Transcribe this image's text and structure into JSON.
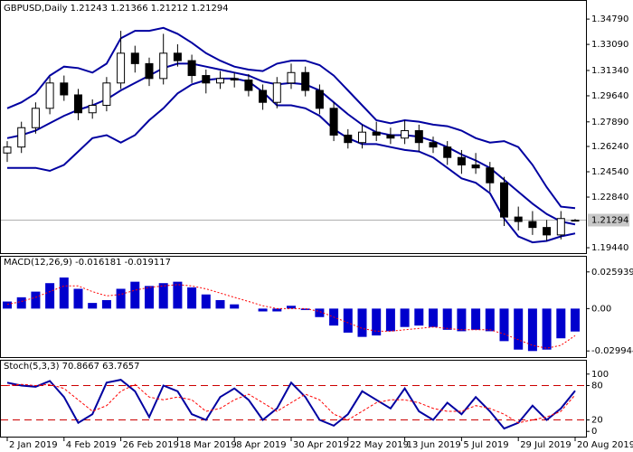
{
  "chart_data": [
    {
      "type": "candlestick",
      "title": "GBPUSD,Daily 1.21243 1.21366 1.21212 1.21294",
      "open": [
        1.258,
        1.262,
        1.275,
        1.288,
        1.305,
        1.297,
        1.285,
        1.29,
        1.305,
        1.325,
        1.318,
        1.308,
        1.325,
        1.32,
        1.31,
        1.305,
        1.308,
        1.307,
        1.3,
        1.292,
        1.305,
        1.312,
        1.3,
        1.288,
        1.27,
        1.265,
        1.272,
        1.27,
        1.268,
        1.273,
        1.265,
        1.262,
        1.255,
        1.25,
        1.248,
        1.238,
        1.215,
        1.212,
        1.208,
        1.203,
        1.2124
      ],
      "high": [
        1.266,
        1.279,
        1.292,
        1.309,
        1.31,
        1.301,
        1.294,
        1.309,
        1.34,
        1.33,
        1.322,
        1.338,
        1.331,
        1.324,
        1.314,
        1.313,
        1.312,
        1.311,
        1.304,
        1.309,
        1.318,
        1.316,
        1.304,
        1.292,
        1.274,
        1.277,
        1.279,
        1.275,
        1.28,
        1.277,
        1.269,
        1.266,
        1.26,
        1.258,
        1.252,
        1.242,
        1.222,
        1.219,
        1.213,
        1.219,
        1.2137
      ],
      "low": [
        1.252,
        1.258,
        1.271,
        1.284,
        1.293,
        1.28,
        1.281,
        1.286,
        1.301,
        1.312,
        1.303,
        1.304,
        1.316,
        1.305,
        1.298,
        1.301,
        1.302,
        1.296,
        1.287,
        1.288,
        1.301,
        1.296,
        1.284,
        1.266,
        1.261,
        1.261,
        1.266,
        1.264,
        1.264,
        1.259,
        1.258,
        1.25,
        1.244,
        1.244,
        1.232,
        1.209,
        1.206,
        1.203,
        1.199,
        1.2,
        1.2121
      ],
      "close": [
        1.262,
        1.275,
        1.288,
        1.305,
        1.297,
        1.285,
        1.29,
        1.305,
        1.325,
        1.318,
        1.308,
        1.325,
        1.32,
        1.31,
        1.305,
        1.308,
        1.307,
        1.3,
        1.292,
        1.305,
        1.312,
        1.3,
        1.288,
        1.27,
        1.265,
        1.272,
        1.27,
        1.268,
        1.273,
        1.265,
        1.262,
        1.255,
        1.25,
        1.248,
        1.238,
        1.215,
        1.212,
        1.208,
        1.203,
        1.214,
        1.2129
      ],
      "series": [
        {
          "color": "#0000a0",
          "values": [
            1.288,
            1.292,
            1.298,
            1.31,
            1.316,
            1.315,
            1.312,
            1.318,
            1.335,
            1.34,
            1.34,
            1.342,
            1.338,
            1.332,
            1.325,
            1.32,
            1.316,
            1.314,
            1.313,
            1.318,
            1.32,
            1.32,
            1.317,
            1.31,
            1.3,
            1.29,
            1.28,
            1.278,
            1.28,
            1.279,
            1.277,
            1.276,
            1.273,
            1.268,
            1.265,
            1.266,
            1.262,
            1.25,
            1.235,
            1.222,
            1.221
          ]
        },
        {
          "color": "#0000a0",
          "values": [
            1.268,
            1.27,
            1.273,
            1.278,
            1.283,
            1.287,
            1.29,
            1.294,
            1.3,
            1.305,
            1.31,
            1.315,
            1.318,
            1.318,
            1.316,
            1.314,
            1.312,
            1.31,
            1.306,
            1.304,
            1.305,
            1.304,
            1.3,
            1.292,
            1.284,
            1.277,
            1.272,
            1.27,
            1.27,
            1.269,
            1.266,
            1.262,
            1.257,
            1.253,
            1.248,
            1.24,
            1.232,
            1.224,
            1.217,
            1.212,
            1.21
          ]
        },
        {
          "color": "#0000a0",
          "values": [
            1.248,
            1.248,
            1.248,
            1.246,
            1.25,
            1.259,
            1.268,
            1.27,
            1.265,
            1.27,
            1.28,
            1.288,
            1.298,
            1.304,
            1.307,
            1.308,
            1.308,
            1.306,
            1.299,
            1.29,
            1.29,
            1.288,
            1.283,
            1.274,
            1.268,
            1.264,
            1.264,
            1.262,
            1.26,
            1.259,
            1.255,
            1.248,
            1.241,
            1.238,
            1.231,
            1.214,
            1.202,
            1.198,
            1.199,
            1.202,
            1.204
          ]
        }
      ],
      "current_price": 1.21294,
      "ylim": [
        1.192,
        1.351
      ],
      "yticks": [
        {
          "value": 1.3479,
          "label": "1.34790"
        },
        {
          "value": 1.3309,
          "label": "1.33090"
        },
        {
          "value": 1.3134,
          "label": "1.31340"
        },
        {
          "value": 1.2964,
          "label": "1.29640"
        },
        {
          "value": 1.2789,
          "label": "1.27890"
        },
        {
          "value": 1.2624,
          "label": "1.26240"
        },
        {
          "value": 1.2454,
          "label": "1.24540"
        },
        {
          "value": 1.2284,
          "label": "1.22840"
        },
        {
          "value": 1.1944,
          "label": "1.19440"
        }
      ]
    },
    {
      "type": "macd",
      "title": "MACD(12,26,9) -0.016181 -0.019117",
      "values": [
        0.005,
        0.008,
        0.012,
        0.018,
        0.022,
        0.014,
        0.004,
        0.006,
        0.014,
        0.019,
        0.016,
        0.018,
        0.019,
        0.015,
        0.01,
        0.006,
        0.003,
        0.0,
        -0.002,
        -0.002,
        0.002,
        -0.001,
        -0.006,
        -0.012,
        -0.017,
        -0.02,
        -0.019,
        -0.016,
        -0.013,
        -0.012,
        -0.013,
        -0.015,
        -0.016,
        -0.015,
        -0.016,
        -0.023,
        -0.029,
        -0.03,
        -0.029,
        -0.021,
        -0.0162
      ],
      "color": "#0000cd",
      "signal": {
        "color": "#ff0000",
        "values": [
          0.003,
          0.005,
          0.008,
          0.012,
          0.016,
          0.016,
          0.012,
          0.009,
          0.01,
          0.013,
          0.015,
          0.016,
          0.017,
          0.016,
          0.014,
          0.011,
          0.008,
          0.005,
          0.002,
          0.0,
          0.0,
          0.0,
          -0.002,
          -0.006,
          -0.01,
          -0.014,
          -0.016,
          -0.016,
          -0.015,
          -0.014,
          -0.013,
          -0.014,
          -0.015,
          -0.015,
          -0.015,
          -0.018,
          -0.022,
          -0.026,
          -0.028,
          -0.026,
          -0.0191
        ]
      },
      "ylim": [
        -0.033,
        0.029
      ],
      "yticks": [
        0.025939,
        {
          "value": 0,
          "label": "0.00"
        },
        -0.029944
      ]
    },
    {
      "type": "stochastic",
      "title": "Stoch(5,3,3) 70.8667 63.7657",
      "series": [
        {
          "color": "#0000a0",
          "values": [
            85,
            80,
            78,
            88,
            60,
            15,
            30,
            85,
            90,
            70,
            25,
            80,
            70,
            30,
            20,
            60,
            75,
            55,
            20,
            40,
            85,
            60,
            20,
            10,
            30,
            70,
            55,
            40,
            75,
            35,
            20,
            50,
            30,
            60,
            35,
            5,
            15,
            45,
            20,
            40,
            70.87
          ]
        },
        {
          "color": "#ff0000",
          "values": [
            80,
            82,
            80,
            82,
            75,
            55,
            35,
            45,
            70,
            82,
            60,
            55,
            60,
            55,
            35,
            40,
            55,
            65,
            50,
            35,
            50,
            65,
            55,
            30,
            20,
            35,
            50,
            55,
            55,
            50,
            40,
            35,
            35,
            45,
            40,
            30,
            15,
            20,
            25,
            35,
            63.77
          ]
        }
      ],
      "levels": [
        80,
        20
      ],
      "ylim": [
        -6,
        106
      ],
      "yticks": [
        100,
        80,
        20,
        0
      ],
      "xticks": [
        {
          "value": 0,
          "label": "2 Jan 2019"
        },
        {
          "value": 4,
          "label": "4 Feb 2019"
        },
        {
          "value": 8,
          "label": "26 Feb 2019"
        },
        {
          "value": 12,
          "label": "18 Mar 2019"
        },
        {
          "value": 16,
          "label": "8 Apr 2019"
        },
        {
          "value": 20,
          "label": "30 Apr 2019"
        },
        {
          "value": 24,
          "label": "22 May 2019"
        },
        {
          "value": 28,
          "label": "13 Jun 2019"
        },
        {
          "value": 32,
          "label": "5 Jul 2019"
        },
        {
          "value": 36,
          "label": "29 Jul 2019"
        },
        {
          "value": 40,
          "label": "20 Aug 2019"
        }
      ]
    }
  ]
}
